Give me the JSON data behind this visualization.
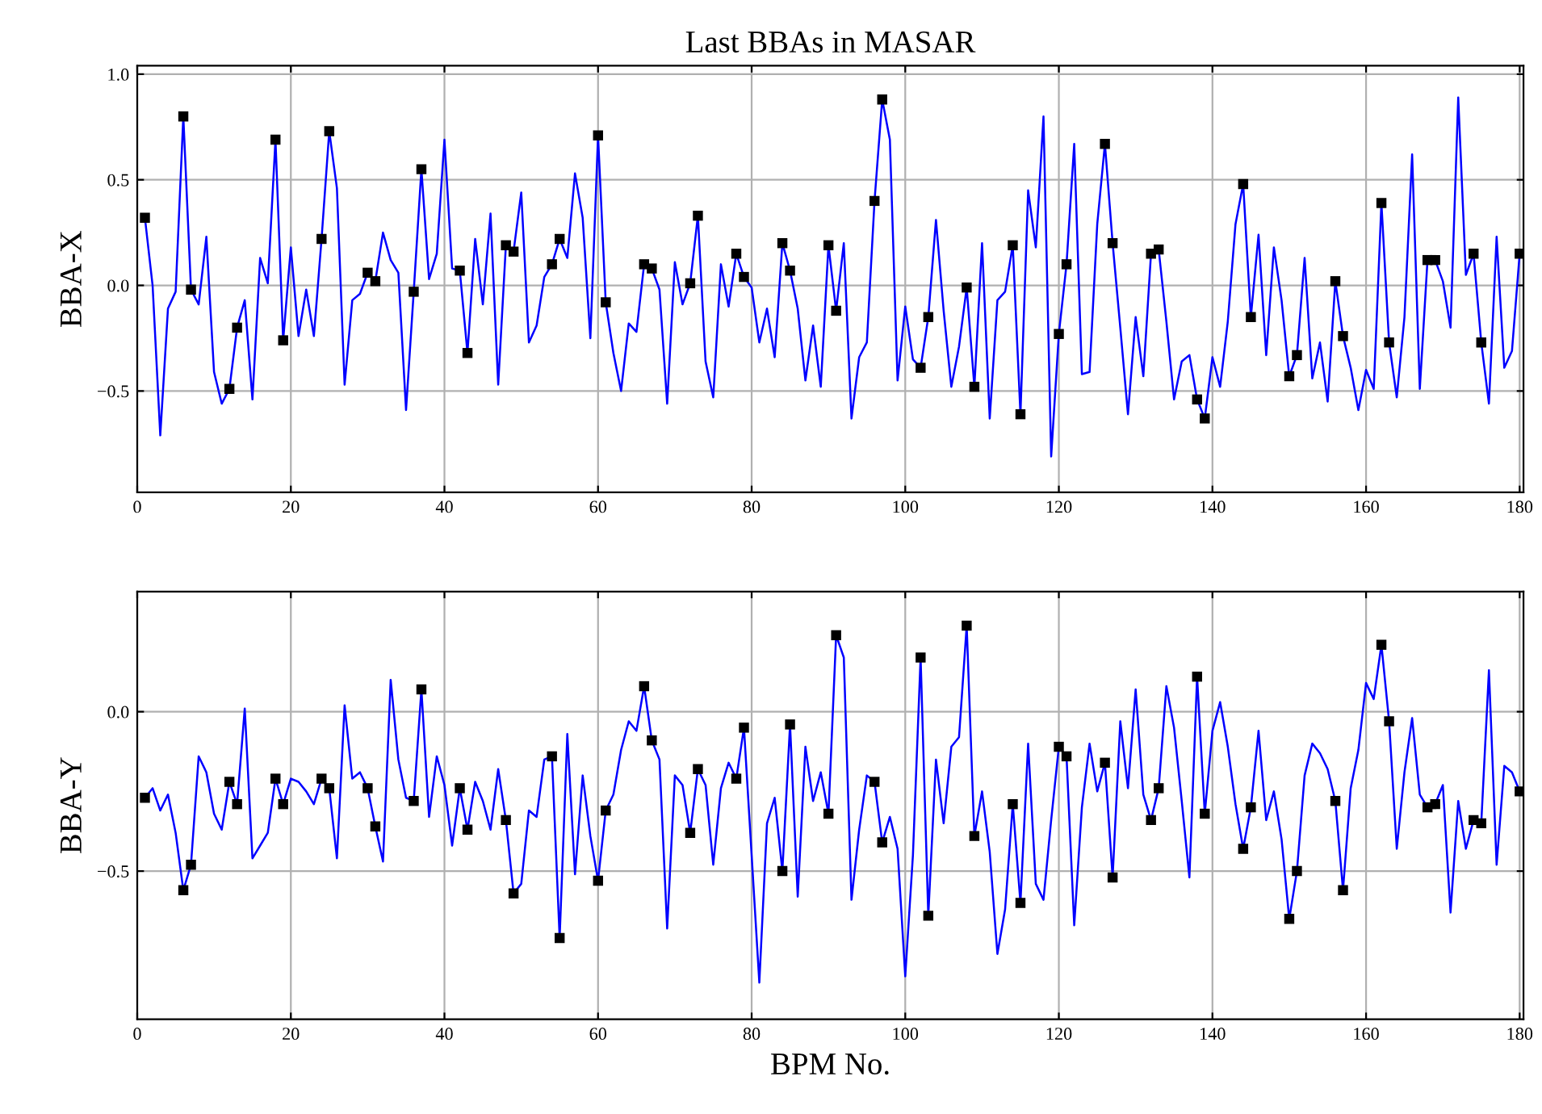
{
  "chart_data": [
    {
      "type": "line",
      "title": "Last BBAs in MASAR",
      "ylabel": "BBA-X",
      "grid": true,
      "xlim": [
        0,
        180.5
      ],
      "xticks": [
        0,
        20,
        40,
        60,
        80,
        100,
        120,
        140,
        160,
        180
      ],
      "ylim": [
        -0.98,
        1.04
      ],
      "yticks": [
        {
          "value": -0.5,
          "label": "−0.5"
        },
        {
          "value": 0,
          "label": "0.0"
        },
        0.5,
        {
          "value": 1,
          "label": "1.0"
        }
      ],
      "x": [
        1,
        2,
        3,
        4,
        5,
        6,
        7,
        8,
        9,
        10,
        11,
        12,
        13,
        14,
        15,
        16,
        17,
        18,
        19,
        20,
        21,
        22,
        23,
        24,
        25,
        26,
        27,
        28,
        29,
        30,
        31,
        32,
        33,
        34,
        35,
        36,
        37,
        38,
        39,
        40,
        41,
        42,
        43,
        44,
        45,
        46,
        47,
        48,
        49,
        50,
        51,
        52,
        53,
        54,
        55,
        56,
        57,
        58,
        59,
        60,
        61,
        62,
        63,
        64,
        65,
        66,
        67,
        68,
        69,
        70,
        71,
        72,
        73,
        74,
        75,
        76,
        77,
        78,
        79,
        80,
        81,
        82,
        83,
        84,
        85,
        86,
        87,
        88,
        89,
        90,
        91,
        92,
        93,
        94,
        95,
        96,
        97,
        98,
        99,
        100,
        101,
        102,
        103,
        104,
        105,
        106,
        107,
        108,
        109,
        110,
        111,
        112,
        113,
        114,
        115,
        116,
        117,
        118,
        119,
        120,
        121,
        122,
        123,
        124,
        125,
        126,
        127,
        128,
        129,
        130,
        131,
        132,
        133,
        134,
        135,
        136,
        137,
        138,
        139,
        140,
        141,
        142,
        143,
        144,
        145,
        146,
        147,
        148,
        149,
        150,
        151,
        152,
        153,
        154,
        155,
        156,
        157,
        158,
        159,
        160,
        161,
        162,
        163,
        164,
        165,
        166,
        167,
        168,
        169,
        170,
        171,
        172,
        173,
        174,
        175,
        176,
        177,
        178,
        179,
        180
      ],
      "series": [
        {
          "color": "#0000ff",
          "values": [
            0.32,
            0.0,
            -0.71,
            -0.11,
            -0.03,
            0.8,
            -0.02,
            -0.09,
            0.23,
            -0.41,
            -0.56,
            -0.49,
            -0.2,
            -0.07,
            -0.54,
            0.13,
            0.01,
            0.69,
            -0.26,
            0.18,
            -0.24,
            -0.02,
            -0.24,
            0.22,
            0.73,
            0.46,
            -0.47,
            -0.07,
            -0.04,
            0.06,
            0.02,
            0.25,
            0.12,
            0.06,
            -0.59,
            -0.03,
            0.55,
            0.03,
            0.15,
            0.69,
            0.08,
            0.07,
            -0.32,
            0.22,
            -0.09,
            0.34,
            -0.47,
            0.19,
            0.16,
            0.44,
            -0.27,
            -0.19,
            0.04,
            0.1,
            0.22,
            0.13,
            0.53,
            0.32,
            -0.25,
            0.71,
            -0.08,
            -0.32,
            -0.5,
            -0.18,
            -0.22,
            0.1,
            0.08,
            -0.02,
            -0.56,
            0.11,
            -0.09,
            0.01,
            0.33,
            -0.36,
            -0.53,
            0.1,
            -0.1,
            0.15,
            0.04,
            -0.01,
            -0.27,
            -0.11,
            -0.34,
            0.2,
            0.07,
            -0.11,
            -0.45,
            -0.19,
            -0.48,
            0.19,
            -0.12,
            0.2,
            -0.63,
            -0.34,
            -0.27,
            0.4,
            0.88,
            0.69,
            -0.45,
            -0.1,
            -0.35,
            -0.39,
            -0.15,
            0.31,
            -0.12,
            -0.48,
            -0.29,
            -0.01,
            -0.48,
            0.2,
            -0.63,
            -0.07,
            -0.03,
            0.19,
            -0.61,
            0.45,
            0.18,
            0.8,
            -0.81,
            -0.23,
            0.1,
            0.67,
            -0.42,
            -0.41,
            0.29,
            0.67,
            0.2,
            -0.2,
            -0.61,
            -0.15,
            -0.43,
            0.15,
            0.17,
            -0.17,
            -0.54,
            -0.36,
            -0.33,
            -0.54,
            -0.63,
            -0.34,
            -0.48,
            -0.17,
            0.29,
            0.48,
            -0.15,
            0.24,
            -0.33,
            0.18,
            -0.07,
            -0.43,
            -0.33,
            0.13,
            -0.44,
            -0.27,
            -0.55,
            0.02,
            -0.24,
            -0.39,
            -0.59,
            -0.4,
            -0.49,
            0.39,
            -0.27,
            -0.53,
            -0.15,
            0.62,
            -0.49,
            0.12,
            0.12,
            0.02,
            -0.2,
            0.89,
            0.05,
            0.15,
            -0.27,
            -0.56,
            0.23,
            -0.39,
            -0.31,
            0.15
          ]
        },
        {
          "type": "scatter",
          "color": "#000000",
          "marker": "square",
          "x": [
            1,
            6,
            7,
            12,
            13,
            18,
            19,
            24,
            25,
            30,
            31,
            36,
            37,
            42,
            43,
            48,
            49,
            54,
            55,
            60,
            61,
            66,
            67,
            72,
            73,
            78,
            79,
            84,
            85,
            90,
            91,
            96,
            97,
            102,
            103,
            108,
            109,
            114,
            115,
            120,
            121,
            126,
            127,
            132,
            133,
            138,
            139,
            144,
            145,
            150,
            151,
            156,
            157,
            162,
            163,
            168,
            169,
            174,
            175,
            180
          ],
          "values": [
            0.32,
            0.8,
            -0.02,
            -0.49,
            -0.2,
            0.69,
            -0.26,
            0.22,
            0.73,
            0.06,
            0.02,
            -0.03,
            0.55,
            0.07,
            -0.32,
            0.19,
            0.16,
            0.1,
            0.22,
            0.71,
            -0.08,
            0.1,
            0.08,
            0.01,
            0.33,
            0.15,
            0.04,
            0.2,
            0.07,
            0.19,
            -0.12,
            0.4,
            0.88,
            -0.39,
            -0.15,
            -0.01,
            -0.48,
            0.19,
            -0.61,
            -0.23,
            0.1,
            0.67,
            0.2,
            0.15,
            0.17,
            -0.54,
            -0.63,
            0.48,
            -0.15,
            -0.43,
            -0.33,
            0.02,
            -0.24,
            0.39,
            -0.27,
            0.12,
            0.12,
            0.15,
            -0.27,
            0.15
          ]
        }
      ]
    },
    {
      "type": "line",
      "xlabel": "BPM No.",
      "ylabel": "BBA-Y",
      "grid": true,
      "xlim": [
        0,
        180.5
      ],
      "xticks": [
        0,
        20,
        40,
        60,
        80,
        100,
        120,
        140,
        160,
        180
      ],
      "ylim": [
        -0.965,
        0.377
      ],
      "yticks": [
        {
          "value": -0.5,
          "label": "−0.5"
        },
        {
          "value": 0,
          "label": "0.0"
        }
      ],
      "x": [
        1,
        2,
        3,
        4,
        5,
        6,
        7,
        8,
        9,
        10,
        11,
        12,
        13,
        14,
        15,
        16,
        17,
        18,
        19,
        20,
        21,
        22,
        23,
        24,
        25,
        26,
        27,
        28,
        29,
        30,
        31,
        32,
        33,
        34,
        35,
        36,
        37,
        38,
        39,
        40,
        41,
        42,
        43,
        44,
        45,
        46,
        47,
        48,
        49,
        50,
        51,
        52,
        53,
        54,
        55,
        56,
        57,
        58,
        59,
        60,
        61,
        62,
        63,
        64,
        65,
        66,
        67,
        68,
        69,
        70,
        71,
        72,
        73,
        74,
        75,
        76,
        77,
        78,
        79,
        80,
        81,
        82,
        83,
        84,
        85,
        86,
        87,
        88,
        89,
        90,
        91,
        92,
        93,
        94,
        95,
        96,
        97,
        98,
        99,
        100,
        101,
        102,
        103,
        104,
        105,
        106,
        107,
        108,
        109,
        110,
        111,
        112,
        113,
        114,
        115,
        116,
        117,
        118,
        119,
        120,
        121,
        122,
        123,
        124,
        125,
        126,
        127,
        128,
        129,
        130,
        131,
        132,
        133,
        134,
        135,
        136,
        137,
        138,
        139,
        140,
        141,
        142,
        143,
        144,
        145,
        146,
        147,
        148,
        149,
        150,
        151,
        152,
        153,
        154,
        155,
        156,
        157,
        158,
        159,
        160,
        161,
        162,
        163,
        164,
        165,
        166,
        167,
        168,
        169,
        170,
        171,
        172,
        173,
        174,
        175,
        176,
        177,
        178,
        179,
        180
      ],
      "series": [
        {
          "color": "#0000ff",
          "values": [
            -0.27,
            -0.24,
            -0.31,
            -0.26,
            -0.38,
            -0.56,
            -0.48,
            -0.14,
            -0.19,
            -0.32,
            -0.37,
            -0.22,
            -0.29,
            0.01,
            -0.46,
            -0.42,
            -0.38,
            -0.21,
            -0.29,
            -0.21,
            -0.22,
            -0.25,
            -0.29,
            -0.21,
            -0.24,
            -0.46,
            0.02,
            -0.21,
            -0.19,
            -0.24,
            -0.36,
            -0.47,
            0.1,
            -0.15,
            -0.27,
            -0.28,
            0.07,
            -0.33,
            -0.14,
            -0.23,
            -0.42,
            -0.24,
            -0.37,
            -0.22,
            -0.28,
            -0.37,
            -0.18,
            -0.34,
            -0.57,
            -0.54,
            -0.31,
            -0.33,
            -0.15,
            -0.14,
            -0.71,
            -0.07,
            -0.51,
            -0.2,
            -0.39,
            -0.53,
            -0.31,
            -0.26,
            -0.12,
            -0.03,
            -0.06,
            0.08,
            -0.09,
            -0.15,
            -0.68,
            -0.2,
            -0.23,
            -0.38,
            -0.18,
            -0.23,
            -0.48,
            -0.24,
            -0.16,
            -0.21,
            -0.05,
            -0.45,
            -0.85,
            -0.35,
            -0.27,
            -0.5,
            -0.04,
            -0.58,
            -0.11,
            -0.28,
            -0.19,
            -0.32,
            0.24,
            0.17,
            -0.59,
            -0.37,
            -0.2,
            -0.22,
            -0.41,
            -0.33,
            -0.43,
            -0.83,
            -0.45,
            0.17,
            -0.64,
            -0.15,
            -0.35,
            -0.11,
            -0.08,
            0.27,
            -0.39,
            -0.25,
            -0.44,
            -0.76,
            -0.62,
            -0.29,
            -0.6,
            -0.1,
            -0.54,
            -0.59,
            -0.34,
            -0.11,
            -0.14,
            -0.67,
            -0.3,
            -0.1,
            -0.25,
            -0.16,
            -0.52,
            -0.03,
            -0.24,
            0.07,
            -0.26,
            -0.34,
            -0.24,
            0.08,
            -0.05,
            -0.28,
            -0.52,
            0.11,
            -0.32,
            -0.06,
            0.03,
            -0.11,
            -0.29,
            -0.43,
            -0.3,
            -0.06,
            -0.34,
            -0.25,
            -0.4,
            -0.65,
            -0.5,
            -0.2,
            -0.1,
            -0.13,
            -0.18,
            -0.28,
            -0.56,
            -0.24,
            -0.12,
            0.09,
            0.04,
            0.21,
            -0.03,
            -0.43,
            -0.19,
            -0.02,
            -0.26,
            -0.3,
            -0.29,
            -0.23,
            -0.63,
            -0.28,
            -0.43,
            -0.34,
            -0.35,
            0.13,
            -0.48,
            -0.17,
            -0.19,
            -0.25
          ]
        },
        {
          "type": "scatter",
          "color": "#000000",
          "marker": "square",
          "x": [
            1,
            6,
            7,
            12,
            13,
            18,
            19,
            24,
            25,
            30,
            31,
            36,
            37,
            42,
            43,
            48,
            49,
            54,
            55,
            60,
            61,
            66,
            67,
            72,
            73,
            78,
            79,
            84,
            85,
            90,
            91,
            96,
            97,
            102,
            103,
            108,
            109,
            114,
            115,
            120,
            121,
            126,
            127,
            132,
            133,
            138,
            139,
            144,
            145,
            150,
            151,
            156,
            157,
            162,
            163,
            168,
            169,
            174,
            175,
            180
          ],
          "values": [
            -0.27,
            -0.56,
            -0.48,
            -0.22,
            -0.29,
            -0.21,
            -0.29,
            -0.21,
            -0.24,
            -0.24,
            -0.36,
            -0.28,
            0.07,
            -0.24,
            -0.37,
            -0.34,
            -0.57,
            -0.14,
            -0.71,
            -0.53,
            -0.31,
            0.08,
            -0.09,
            -0.38,
            -0.18,
            -0.21,
            -0.05,
            -0.5,
            -0.04,
            -0.32,
            0.24,
            -0.22,
            -0.41,
            0.17,
            -0.64,
            0.27,
            -0.39,
            -0.29,
            -0.6,
            -0.11,
            -0.14,
            -0.16,
            -0.52,
            -0.34,
            -0.24,
            0.11,
            -0.32,
            -0.43,
            -0.3,
            -0.65,
            -0.5,
            -0.28,
            -0.56,
            0.21,
            -0.03,
            -0.3,
            -0.29,
            -0.34,
            -0.35,
            -0.25
          ]
        }
      ]
    }
  ]
}
